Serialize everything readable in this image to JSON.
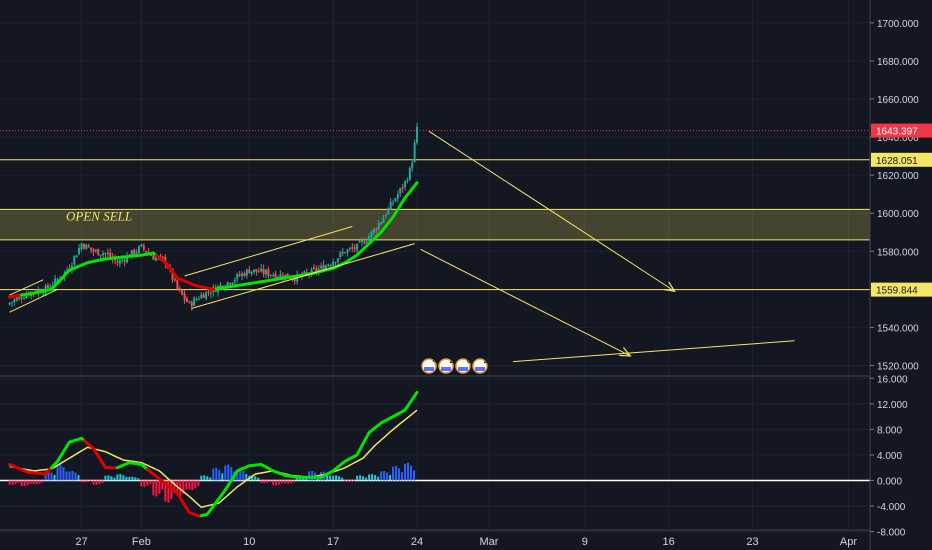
{
  "colors": {
    "background": "#131722",
    "grid": "#1e222d",
    "axis_text": "#d1d4dc",
    "bull": "#26a69a",
    "bear": "#ef5350",
    "ma_up": "#00e600",
    "ma_down": "#e00000",
    "drawing": "#f5e663",
    "price_line": "#f23645",
    "macd_signal": "#f5e663",
    "hist_pos_strong": "#2962ff",
    "hist_pos_weak": "#26c6da",
    "hist_neg": "#ff1744",
    "zero_line": "#ffffff"
  },
  "chart_data": [
    {
      "type": "candlestick",
      "title": "",
      "y_axis_ticks": [
        "1700.000",
        "1680.000",
        "1660.000",
        "1640.000",
        "1620.000",
        "1600.000",
        "1580.000",
        "1560.000",
        "1540.000",
        "1520.000"
      ],
      "ylim": [
        1515,
        1712
      ],
      "last_price": "1643.397",
      "level_labels": [
        "1628.051",
        "1559.844"
      ],
      "levels": [
        1628.051,
        1559.844
      ],
      "zone": {
        "label": "OPEN SELL",
        "top": 1602,
        "bottom": 1586
      },
      "x_axis_ticks": [
        "27",
        "Feb",
        "10",
        "17",
        "24",
        "Mar",
        "9",
        "16",
        "23",
        "Apr"
      ],
      "x_axis_tick_days": [
        6,
        11,
        20,
        27,
        34,
        40,
        48,
        55,
        62,
        70
      ],
      "xlim": [
        -0.8,
        71.8
      ],
      "events": [
        "4",
        "2",
        "6",
        "2"
      ],
      "price_path": [
        [
          0,
          1553
        ],
        [
          1.5,
          1558
        ],
        [
          3,
          1560
        ],
        [
          4,
          1565
        ],
        [
          5,
          1572
        ],
        [
          6,
          1584
        ],
        [
          7,
          1580
        ],
        [
          8,
          1579
        ],
        [
          9,
          1574
        ],
        [
          10,
          1578
        ],
        [
          11,
          1582
        ],
        [
          12,
          1577
        ],
        [
          13,
          1575
        ],
        [
          14,
          1560
        ],
        [
          15,
          1552
        ],
        [
          16,
          1557
        ],
        [
          18,
          1563
        ],
        [
          20,
          1570
        ],
        [
          22,
          1568
        ],
        [
          24,
          1566
        ],
        [
          26,
          1571
        ],
        [
          27,
          1575
        ],
        [
          28,
          1580
        ],
        [
          29,
          1582
        ],
        [
          30,
          1588
        ],
        [
          31,
          1596
        ],
        [
          32,
          1606
        ],
        [
          33,
          1616
        ],
        [
          33.5,
          1624
        ],
        [
          34,
          1644
        ]
      ],
      "ma_path": [
        [
          0,
          1556
        ],
        [
          2,
          1558
        ],
        [
          3.5,
          1560
        ],
        [
          5,
          1570
        ],
        [
          6.5,
          1574
        ],
        [
          8,
          1576
        ],
        [
          9.5,
          1577
        ],
        [
          11,
          1578
        ],
        [
          12,
          1579
        ],
        [
          13,
          1574
        ],
        [
          14,
          1566
        ],
        [
          15.5,
          1562
        ],
        [
          17,
          1560
        ],
        [
          19,
          1562
        ],
        [
          21,
          1564
        ],
        [
          23,
          1566
        ],
        [
          25,
          1568
        ],
        [
          27,
          1571
        ],
        [
          28,
          1574
        ],
        [
          29,
          1578
        ],
        [
          30,
          1584
        ],
        [
          31,
          1590
        ],
        [
          32,
          1598
        ],
        [
          33,
          1608
        ],
        [
          34,
          1616
        ]
      ],
      "ma_down_ranges": [
        [
          0,
          1
        ],
        [
          12.3,
          17.3
        ]
      ],
      "lines": [
        {
          "from": [
            0,
            1557
          ],
          "to": [
            2.8,
            1565
          ]
        },
        {
          "from": [
            0,
            1548
          ],
          "to": [
            4,
            1560
          ]
        },
        {
          "from": [
            14.6,
            1567
          ],
          "to": [
            28.6,
            1593
          ]
        },
        {
          "from": [
            15.2,
            1550
          ],
          "to": [
            33.8,
            1584
          ]
        },
        {
          "from": [
            35,
            1643
          ],
          "to": [
            55.5,
            1559
          ],
          "arrow": true
        },
        {
          "from": [
            34.3,
            1581
          ],
          "to": [
            51.8,
            1525
          ],
          "arrow": true
        },
        {
          "from": [
            42,
            1522
          ],
          "to": [
            65.5,
            1533
          ]
        }
      ]
    },
    {
      "type": "macd",
      "y_axis_ticks": [
        "16.000",
        "12.000",
        "8.000",
        "4.000",
        "0.000",
        "-4.000",
        "-8.000"
      ],
      "ylim": [
        -7.6,
        16.2
      ],
      "macd_path": [
        [
          0,
          2.5
        ],
        [
          1.5,
          1.3
        ],
        [
          3,
          1.0
        ],
        [
          4,
          3.0
        ],
        [
          5,
          6.0
        ],
        [
          6,
          6.6
        ],
        [
          7,
          5.0
        ],
        [
          8,
          2.0
        ],
        [
          9,
          2.0
        ],
        [
          10,
          2.8
        ],
        [
          11,
          2.5
        ],
        [
          12,
          1.0
        ],
        [
          13,
          -0.5
        ],
        [
          14,
          -2.0
        ],
        [
          15,
          -5.0
        ],
        [
          15.8,
          -5.6
        ],
        [
          16.5,
          -5.3
        ],
        [
          18,
          -1.5
        ],
        [
          19,
          1.5
        ],
        [
          20,
          2.3
        ],
        [
          21,
          2.5
        ],
        [
          22,
          1.5
        ],
        [
          23,
          0.8
        ],
        [
          24,
          0.5
        ],
        [
          26,
          0.5
        ],
        [
          27,
          1.5
        ],
        [
          28,
          3.0
        ],
        [
          29,
          4.0
        ],
        [
          30,
          7.5
        ],
        [
          31,
          9.0
        ],
        [
          32,
          10.0
        ],
        [
          33,
          11.0
        ],
        [
          34,
          13.8
        ]
      ],
      "macd_down_ranges": [
        [
          0,
          3.5
        ],
        [
          6.3,
          9
        ],
        [
          11.5,
          16
        ]
      ],
      "signal_path": [
        [
          0,
          2.2
        ],
        [
          2,
          1.5
        ],
        [
          3.5,
          1.8
        ],
        [
          5,
          3.5
        ],
        [
          6.5,
          5.2
        ],
        [
          8,
          4.5
        ],
        [
          9.5,
          3.2
        ],
        [
          11,
          2.8
        ],
        [
          12.5,
          1.5
        ],
        [
          14,
          -1.0
        ],
        [
          15,
          -2.5
        ],
        [
          16,
          -4.2
        ],
        [
          17.5,
          -3.5
        ],
        [
          19,
          -1.0
        ],
        [
          20.5,
          1.0
        ],
        [
          22,
          1.5
        ],
        [
          23.5,
          0.8
        ],
        [
          25,
          0.5
        ],
        [
          26.5,
          1.0
        ],
        [
          28,
          2.0
        ],
        [
          29.5,
          3.5
        ],
        [
          30.5,
          5.5
        ],
        [
          32,
          8.0
        ],
        [
          33,
          9.5
        ],
        [
          34,
          11.0
        ]
      ],
      "histogram": [
        -0.7,
        -0.9,
        -0.6,
        1.5,
        2.5,
        1.5,
        -0.3,
        -0.7,
        0.8,
        1.0,
        0.6,
        -1.0,
        -2.5,
        -3.5,
        -2.5,
        -1.5,
        0.8,
        2.0,
        2.5,
        1.8,
        0.8,
        -0.4,
        -0.8,
        -0.5,
        0.8,
        1.5,
        1.4,
        0.8,
        -0.2,
        0.8,
        1.0,
        1.5,
        2.3,
        2.8
      ]
    }
  ]
}
